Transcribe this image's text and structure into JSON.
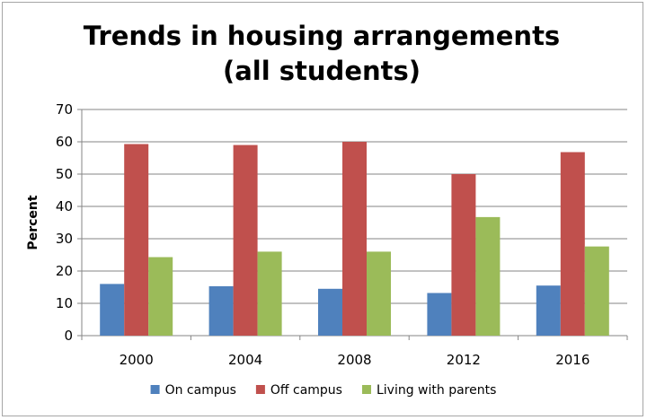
{
  "chart_data": {
    "type": "bar",
    "title_lines": [
      "Trends in housing arrangements",
      "(all students)"
    ],
    "xlabel": "",
    "ylabel": "Percent",
    "ylim": [
      0,
      70
    ],
    "yticks": [
      0,
      10,
      20,
      30,
      40,
      50,
      60,
      70
    ],
    "categories": [
      "2000",
      "2004",
      "2008",
      "2012",
      "2016"
    ],
    "series": [
      {
        "name": "On campus",
        "color": "#4f81bd",
        "values": [
          16,
          15.3,
          14.5,
          13.2,
          15.5
        ]
      },
      {
        "name": "Off campus",
        "color": "#c0504d",
        "values": [
          59.3,
          59,
          60,
          50,
          56.8
        ]
      },
      {
        "name": "Living with parents",
        "color": "#9bbb59",
        "values": [
          24.3,
          26,
          26,
          36.7,
          27.6
        ]
      }
    ],
    "grid": true,
    "legend_position": "bottom"
  }
}
